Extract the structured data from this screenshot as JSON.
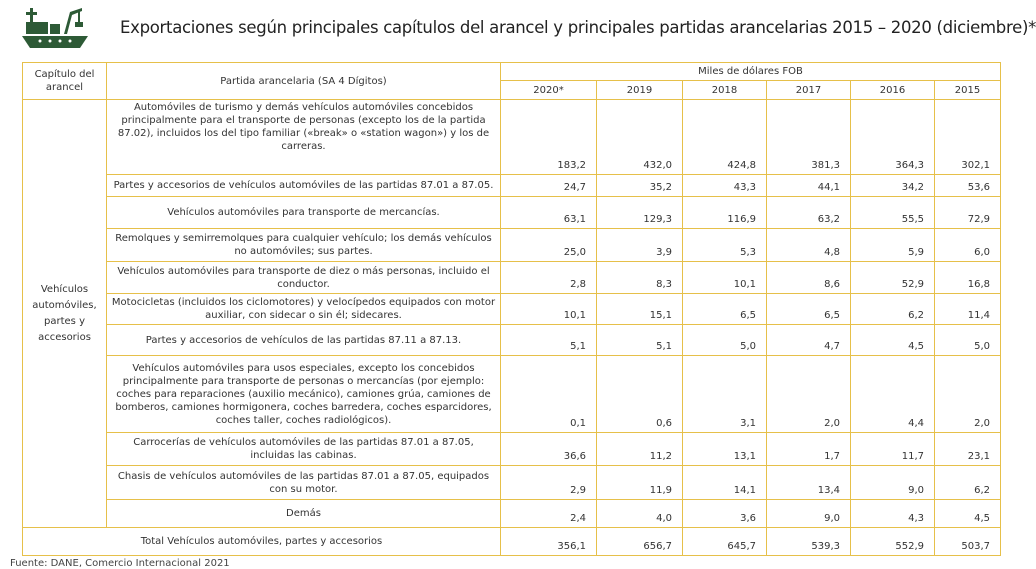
{
  "header": {
    "title": "Exportaciones según principales capítulos del arancel y principales partidas arancelarias 2015 – 2020 (diciembre)*"
  },
  "table": {
    "chapter_header": "Capítulo del arancel",
    "partida_header": "Partida arancelaria (SA 4 Dígitos)",
    "unit_header": "Miles de dólares FOB",
    "years": [
      "2020*",
      "2019",
      "2018",
      "2017",
      "2016",
      "2015"
    ],
    "chapter": "Vehículos automóviles, partes y accesorios",
    "rows": [
      {
        "label": "Automóviles de turismo y demás vehículos automóviles concebidos principalmente para el transporte de personas (excepto los de la partida 87.02), incluidos los del tipo familiar («break» o «station wagon») y los de carreras.",
        "values": [
          "183,2",
          "432,0",
          "424,8",
          "381,3",
          "364,3",
          "302,1"
        ]
      },
      {
        "label": "Partes y accesorios de vehículos automóviles de las partidas 87.01 a 87.05.",
        "values": [
          "24,7",
          "35,2",
          "43,3",
          "44,1",
          "34,2",
          "53,6"
        ]
      },
      {
        "label": "Vehículos automóviles para transporte de mercancías.",
        "values": [
          "63,1",
          "129,3",
          "116,9",
          "63,2",
          "55,5",
          "72,9"
        ]
      },
      {
        "label": "Remolques y semirremolques para cualquier vehículo; los demás vehículos no automóviles; sus partes.",
        "values": [
          "25,0",
          "3,9",
          "5,3",
          "4,8",
          "5,9",
          "6,0"
        ]
      },
      {
        "label": "Vehículos automóviles para transporte de diez o más personas, incluido el conductor.",
        "values": [
          "2,8",
          "8,3",
          "10,1",
          "8,6",
          "52,9",
          "16,8"
        ]
      },
      {
        "label": "Motocicletas (incluidos los ciclomotores) y velocípedos equipados con motor auxiliar, con sidecar o sin él; sidecares.",
        "values": [
          "10,1",
          "15,1",
          "6,5",
          "6,5",
          "6,2",
          "11,4"
        ]
      },
      {
        "label": "Partes y accesorios de vehículos de las partidas 87.11 a 87.13.",
        "values": [
          "5,1",
          "5,1",
          "5,0",
          "4,7",
          "4,5",
          "5,0"
        ]
      },
      {
        "label": "Vehículos automóviles para usos especiales, excepto los concebidos principalmente para transporte de personas o mercancías (por ejemplo: coches para reparaciones (auxilio mecánico), camiones grúa, camiones de bomberos, camiones hormigonera, coches barredera, coches esparcidores, coches taller, coches radiológicos).",
        "values": [
          "0,1",
          "0,6",
          "3,1",
          "2,0",
          "4,4",
          "2,0"
        ]
      },
      {
        "label": "Carrocerías de vehículos automóviles de las partidas 87.01 a 87.05, incluidas las cabinas.",
        "values": [
          "36,6",
          "11,2",
          "13,1",
          "1,7",
          "11,7",
          "23,1"
        ]
      },
      {
        "label": "Chasis de vehículos automóviles de las partidas 87.01 a 87.05, equipados con su motor.",
        "values": [
          "2,9",
          "11,9",
          "14,1",
          "13,4",
          "9,0",
          "6,2"
        ]
      },
      {
        "label": "Demás",
        "values": [
          "2,4",
          "4,0",
          "3,6",
          "9,0",
          "4,3",
          "4,5"
        ]
      }
    ],
    "total": {
      "label": "Total Vehículos automóviles, partes y accesorios",
      "values": [
        "356,1",
        "656,7",
        "645,7",
        "539,3",
        "552,9",
        "503,7"
      ]
    }
  },
  "footer": {
    "source": "Fuente: DANE, Comercio Internacional 2021"
  }
}
